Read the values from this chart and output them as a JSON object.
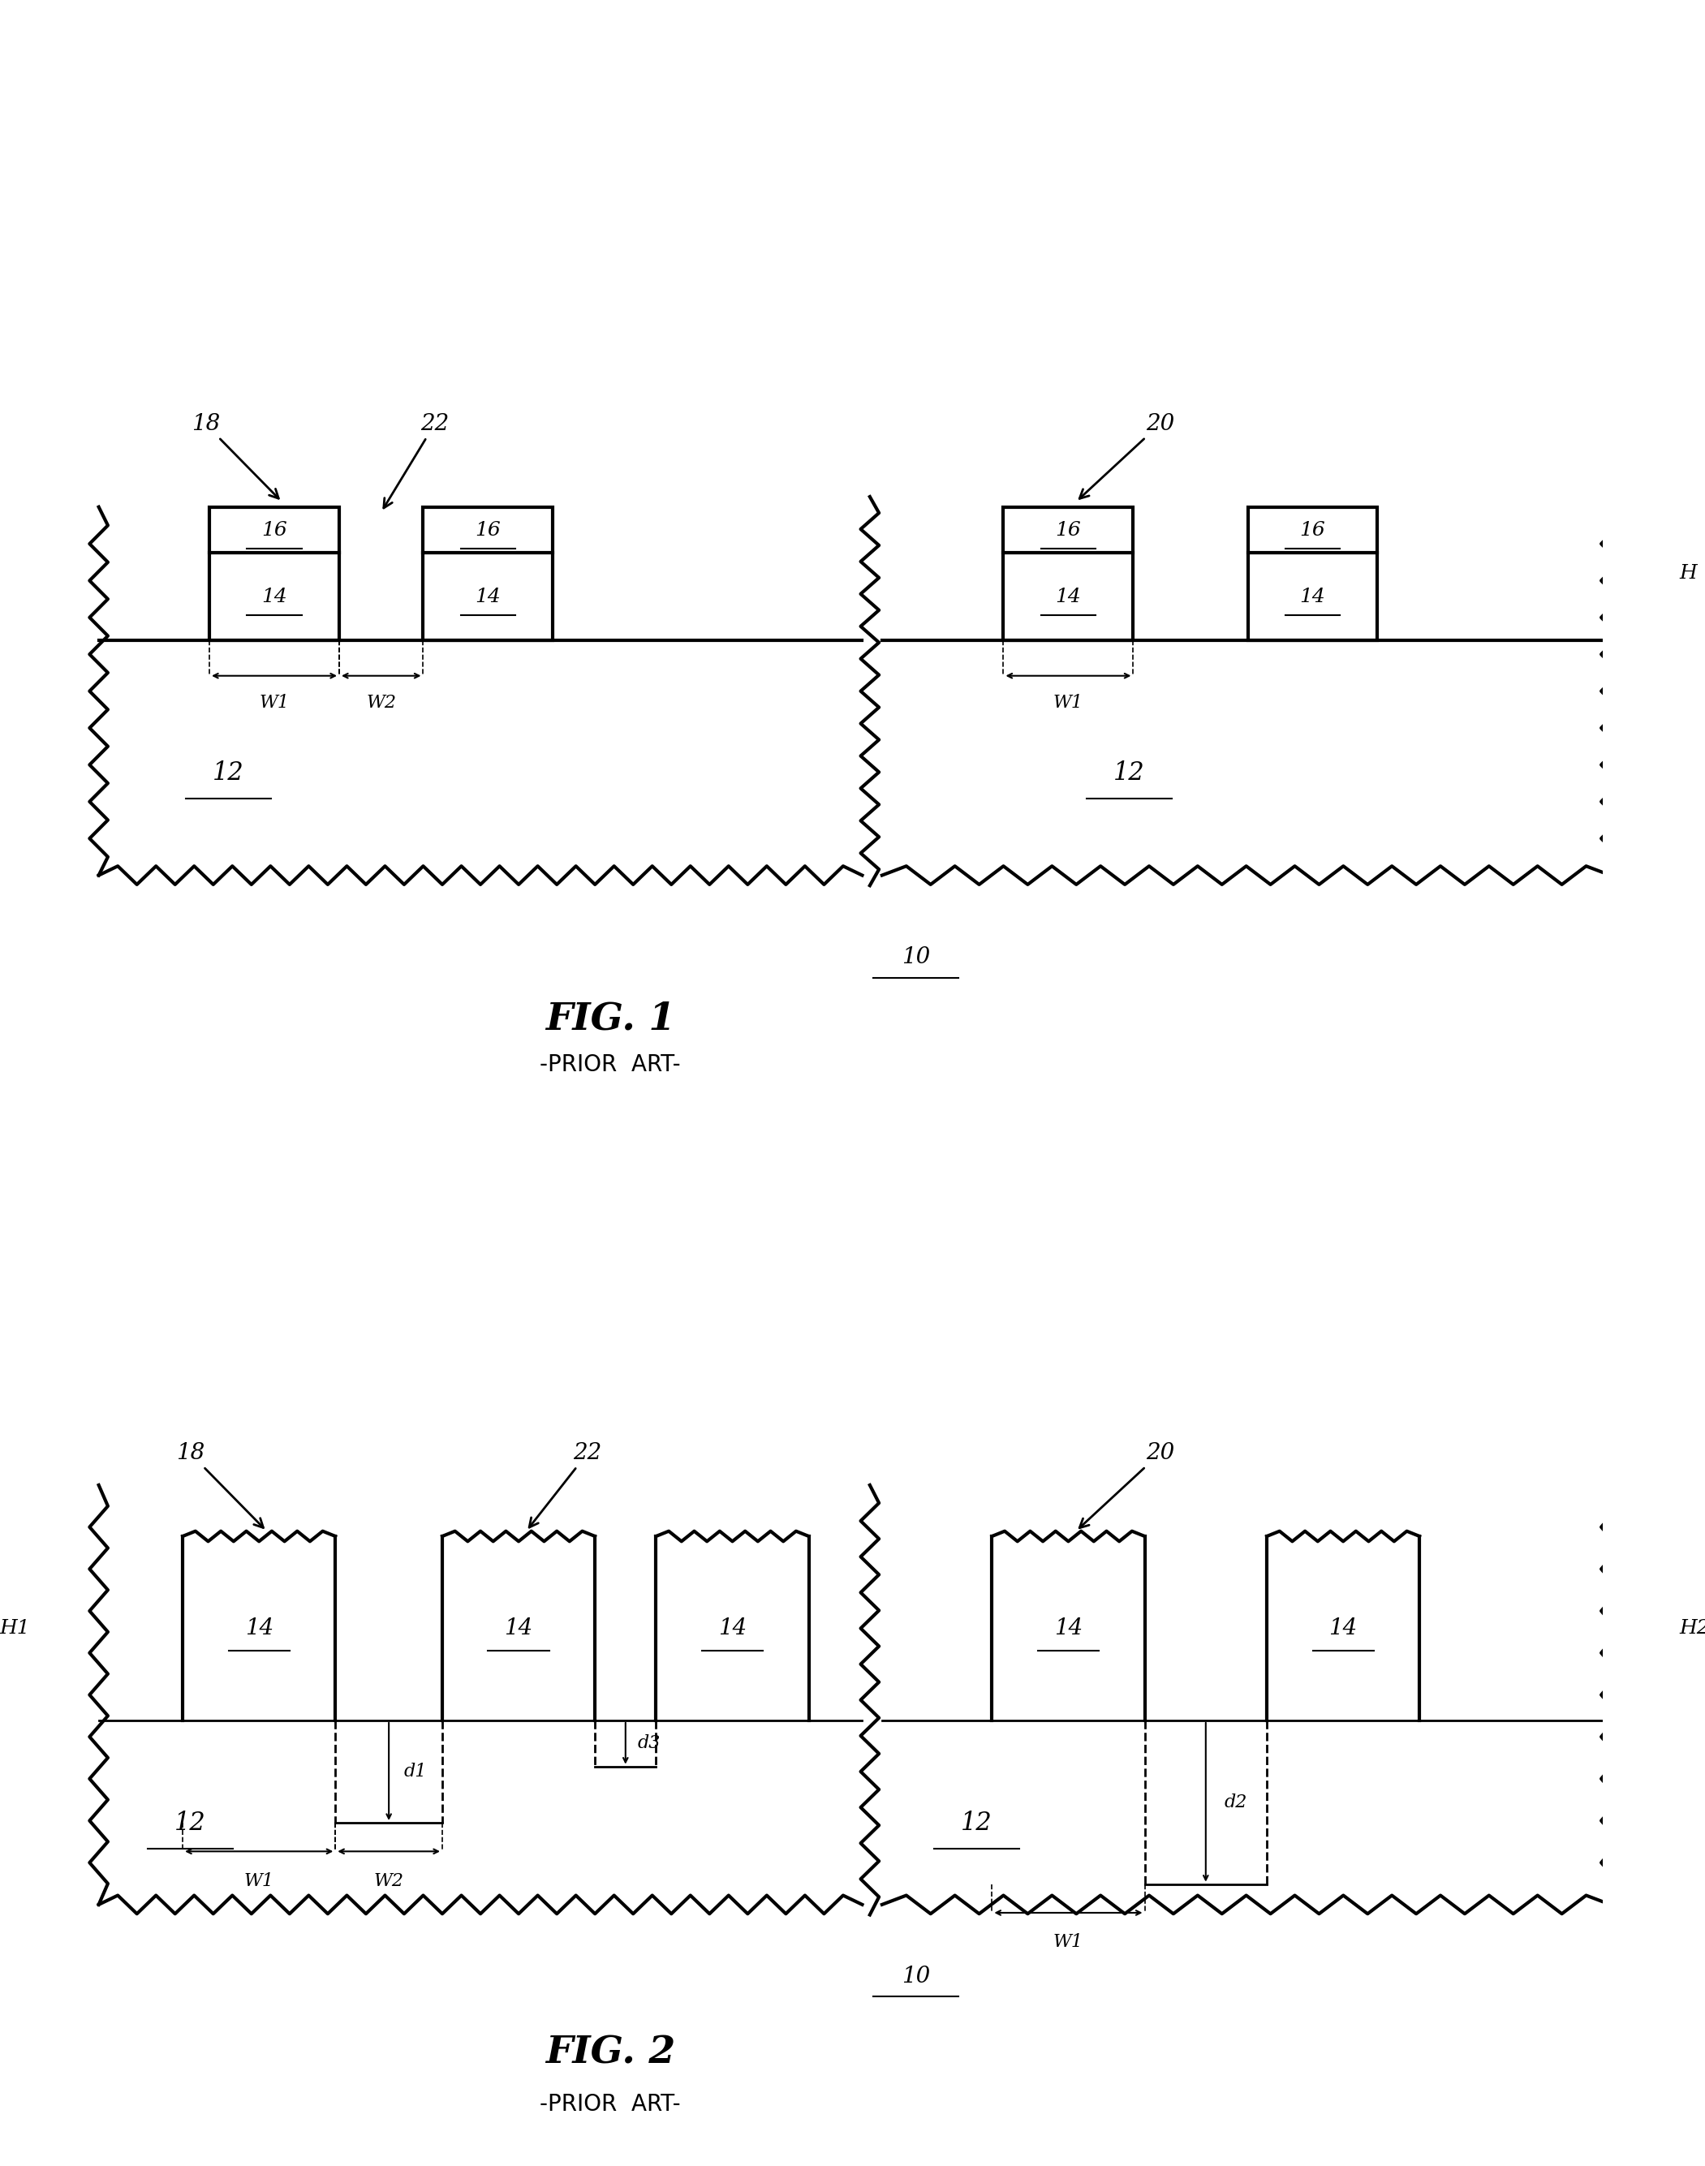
{
  "fig_width": 21.01,
  "fig_height": 26.69,
  "bg_color": "#ffffff",
  "line_color": "#000000",
  "fig1_title": "FIG. 1",
  "fig2_title": "FIG. 2",
  "prior_art": "-PRIOR  ART-",
  "labels": {
    "12": "12",
    "14": "14",
    "16": "16",
    "10": "10",
    "18": "18",
    "20": "20",
    "22": "22",
    "H": "H",
    "W1": "W1",
    "W2": "W2",
    "H1": "H1",
    "H2": "H2",
    "d1": "d1",
    "d2": "d2",
    "d3": "d3"
  }
}
